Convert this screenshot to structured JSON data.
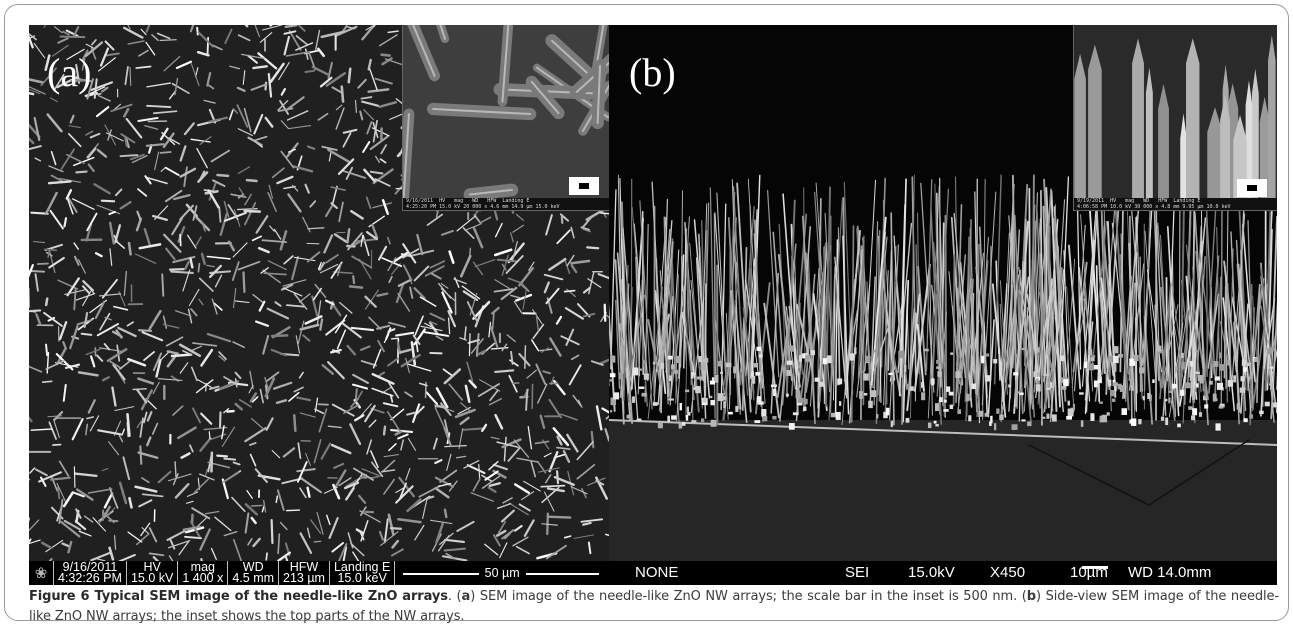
{
  "panel_a": {
    "label": "(a)",
    "databar": {
      "date": "9/16/2011",
      "time": "4:32:26 PM",
      "hv_label": "HV",
      "hv_value": "15.0 kV",
      "mag_label": "mag",
      "mag_value": "1 400 x",
      "wd_label": "WD",
      "wd_value": "4.5 mm",
      "hfw_label": "HFW",
      "hfw_value": "213 µm",
      "landing_label": "Landing E",
      "landing_value": "15.0 keV",
      "scale": "50 µm"
    },
    "inset_meta": "9/16/2011  HV   mag   WD   HFW  Landing E\n4:25:20 PM 15.0 kV 20 000 x 4.6 mm 14.9 µm 15.0 keV"
  },
  "panel_b": {
    "label": "(b)",
    "databar": {
      "detector_mode": "NONE",
      "signal": "SEI",
      "voltage": "15.0kV",
      "magnification": "X450",
      "scale": "10µm",
      "wd": "WD 14.0mm"
    },
    "inset_meta": "9/19/2011  HV   mag   WD   HFW  Landing E\n4:06:58 PM 10.0 kV 30 000 x 4.8 mm 9.95 µm 10.0 keV"
  },
  "caption": {
    "title": "Figure 6 Typical SEM image of the needle-like ZnO arrays",
    "p1": ". (",
    "a": "a",
    "p2": ") SEM image of the needle-like ZnO NW arrays; the scale bar in the inset is 500 nm. (",
    "b": "b",
    "p3": ") Side-view SEM image of the needle-like ZnO NW arrays; the inset shows the top parts of the NW arrays."
  }
}
